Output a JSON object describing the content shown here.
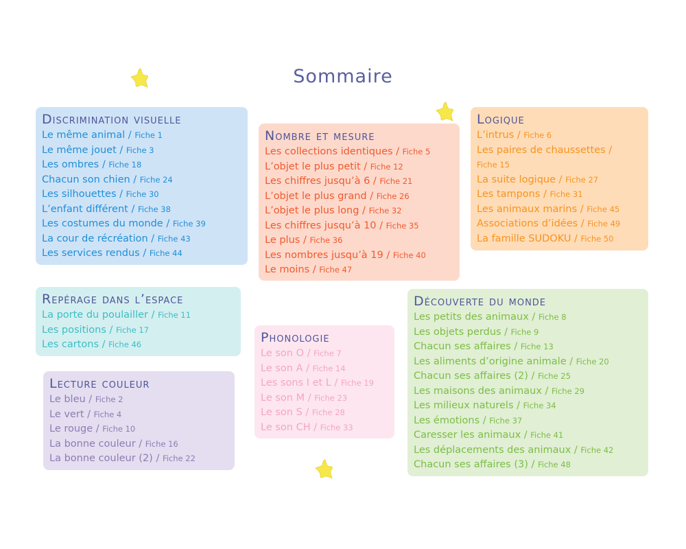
{
  "title": "Sommaire",
  "sections": [
    {
      "title": "Discrimination visuelle",
      "color": "#1f8fd6",
      "bg": "#cfe3f7",
      "items": [
        {
          "label": "Le même animal /",
          "fiche": "Fiche 1"
        },
        {
          "label": "Le même jouet /",
          "fiche": "Fiche 3"
        },
        {
          "label": "Les ombres /",
          "fiche": "Fiche 18"
        },
        {
          "label": "Chacun son chien /",
          "fiche": "Fiche 24"
        },
        {
          "label": "Les silhouettes /",
          "fiche": "Fiche 30"
        },
        {
          "label": "L’enfant différent /",
          "fiche": "Fiche 38"
        },
        {
          "label": "Les costumes du monde /",
          "fiche": "Fiche 39"
        },
        {
          "label": "La cour de récréation /",
          "fiche": "Fiche 43"
        },
        {
          "label": "Les services rendus /",
          "fiche": "Fiche 44"
        }
      ]
    },
    {
      "title": "Nombre et mesure",
      "color": "#ef5a2e",
      "bg": "#fdd9cc",
      "items": [
        {
          "label": "Les collections identiques /",
          "fiche": "Fiche 5"
        },
        {
          "label": "L’objet le plus petit /",
          "fiche": "Fiche 12"
        },
        {
          "label": "Les chiffres jusqu’à 6 /",
          "fiche": "Fiche 21"
        },
        {
          "label": "L’objet le plus grand /",
          "fiche": "Fiche 26"
        },
        {
          "label": "L’objet le plus long /",
          "fiche": "Fiche 32"
        },
        {
          "label": "Les chiffres jusqu’à 10 /",
          "fiche": "Fiche 35"
        },
        {
          "label": "Le plus /",
          "fiche": "Fiche 36"
        },
        {
          "label": "Les nombres jusqu’à 19 /",
          "fiche": "Fiche 40"
        },
        {
          "label": "Le moins /",
          "fiche": "Fiche 47"
        }
      ]
    },
    {
      "title": "Logique",
      "color": "#f7931e",
      "bg": "#fedcb8",
      "items": [
        {
          "label": "L’intrus /",
          "fiche": "Fiche 6"
        },
        {
          "label": "Les paires de chaussettes /",
          "fiche": ""
        },
        {
          "label": "",
          "fiche": "Fiche 15"
        },
        {
          "label": "La suite logique /",
          "fiche": "Fiche 27"
        },
        {
          "label": "Les tampons /",
          "fiche": "Fiche 31"
        },
        {
          "label": "Les animaux marins /",
          "fiche": "Fiche 45"
        },
        {
          "label": "Associations d’idées /",
          "fiche": "Fiche 49"
        },
        {
          "label": "La famille SUDOKU /",
          "fiche": "Fiche 50"
        }
      ]
    },
    {
      "title": "Repérage dans l’espace",
      "color": "#3dbdc6",
      "bg": "#d4eff0",
      "items": [
        {
          "label": "La porte du poulailler /",
          "fiche": "Fiche 11"
        },
        {
          "label": "Les positions /",
          "fiche": "Fiche 17"
        },
        {
          "label": "Les cartons /",
          "fiche": "Fiche 46"
        }
      ]
    },
    {
      "title": "Phonologie",
      "color": "#f3a6c2",
      "bg": "#fde6ef",
      "items": [
        {
          "label": "Le son O /",
          "fiche": "Fiche 7"
        },
        {
          "label": "Le son A /",
          "fiche": "Fiche 14"
        },
        {
          "label": "Les sons I et L /",
          "fiche": "Fiche 19"
        },
        {
          "label": "Le son M /",
          "fiche": "Fiche 23"
        },
        {
          "label": "Le son S /",
          "fiche": "Fiche 28"
        },
        {
          "label": "Le son CH /",
          "fiche": "Fiche 33"
        }
      ]
    },
    {
      "title": "Lecture couleur",
      "color": "#8e7cb3",
      "bg": "#e4def0",
      "items": [
        {
          "label": "Le bleu /",
          "fiche": "Fiche 2"
        },
        {
          "label": "Le vert /",
          "fiche": "Fiche 4"
        },
        {
          "label": "Le rouge /",
          "fiche": "Fiche 10"
        },
        {
          "label": "La bonne couleur /",
          "fiche": "Fiche 16"
        },
        {
          "label": "La bonne couleur (2) /",
          "fiche": "Fiche 22"
        }
      ]
    },
    {
      "title": "Découverte du monde",
      "color": "#7cbd45",
      "bg": "#e1efd5",
      "items": [
        {
          "label": "Les petits des animaux /",
          "fiche": "Fiche 8"
        },
        {
          "label": "Les objets perdus /",
          "fiche": "Fiche 9"
        },
        {
          "label": "Chacun ses affaires /",
          "fiche": "Fiche 13"
        },
        {
          "label": "Les aliments d’origine animale /",
          "fiche": "Fiche 20"
        },
        {
          "label": "Chacun ses affaires (2) /",
          "fiche": "Fiche 25"
        },
        {
          "label": "Les maisons des animaux /",
          "fiche": "Fiche 29"
        },
        {
          "label": "Les milieux naturels /",
          "fiche": "Fiche 34"
        },
        {
          "label": "Les émotions /",
          "fiche": "Fiche 37"
        },
        {
          "label": "Caresser les animaux /",
          "fiche": "Fiche 41"
        },
        {
          "label": "Les déplacements des animaux /",
          "fiche": "Fiche 42"
        },
        {
          "label": "Chacun ses affaires (3) /",
          "fiche": "Fiche 48"
        }
      ]
    }
  ],
  "star_color": "#f7e84a"
}
